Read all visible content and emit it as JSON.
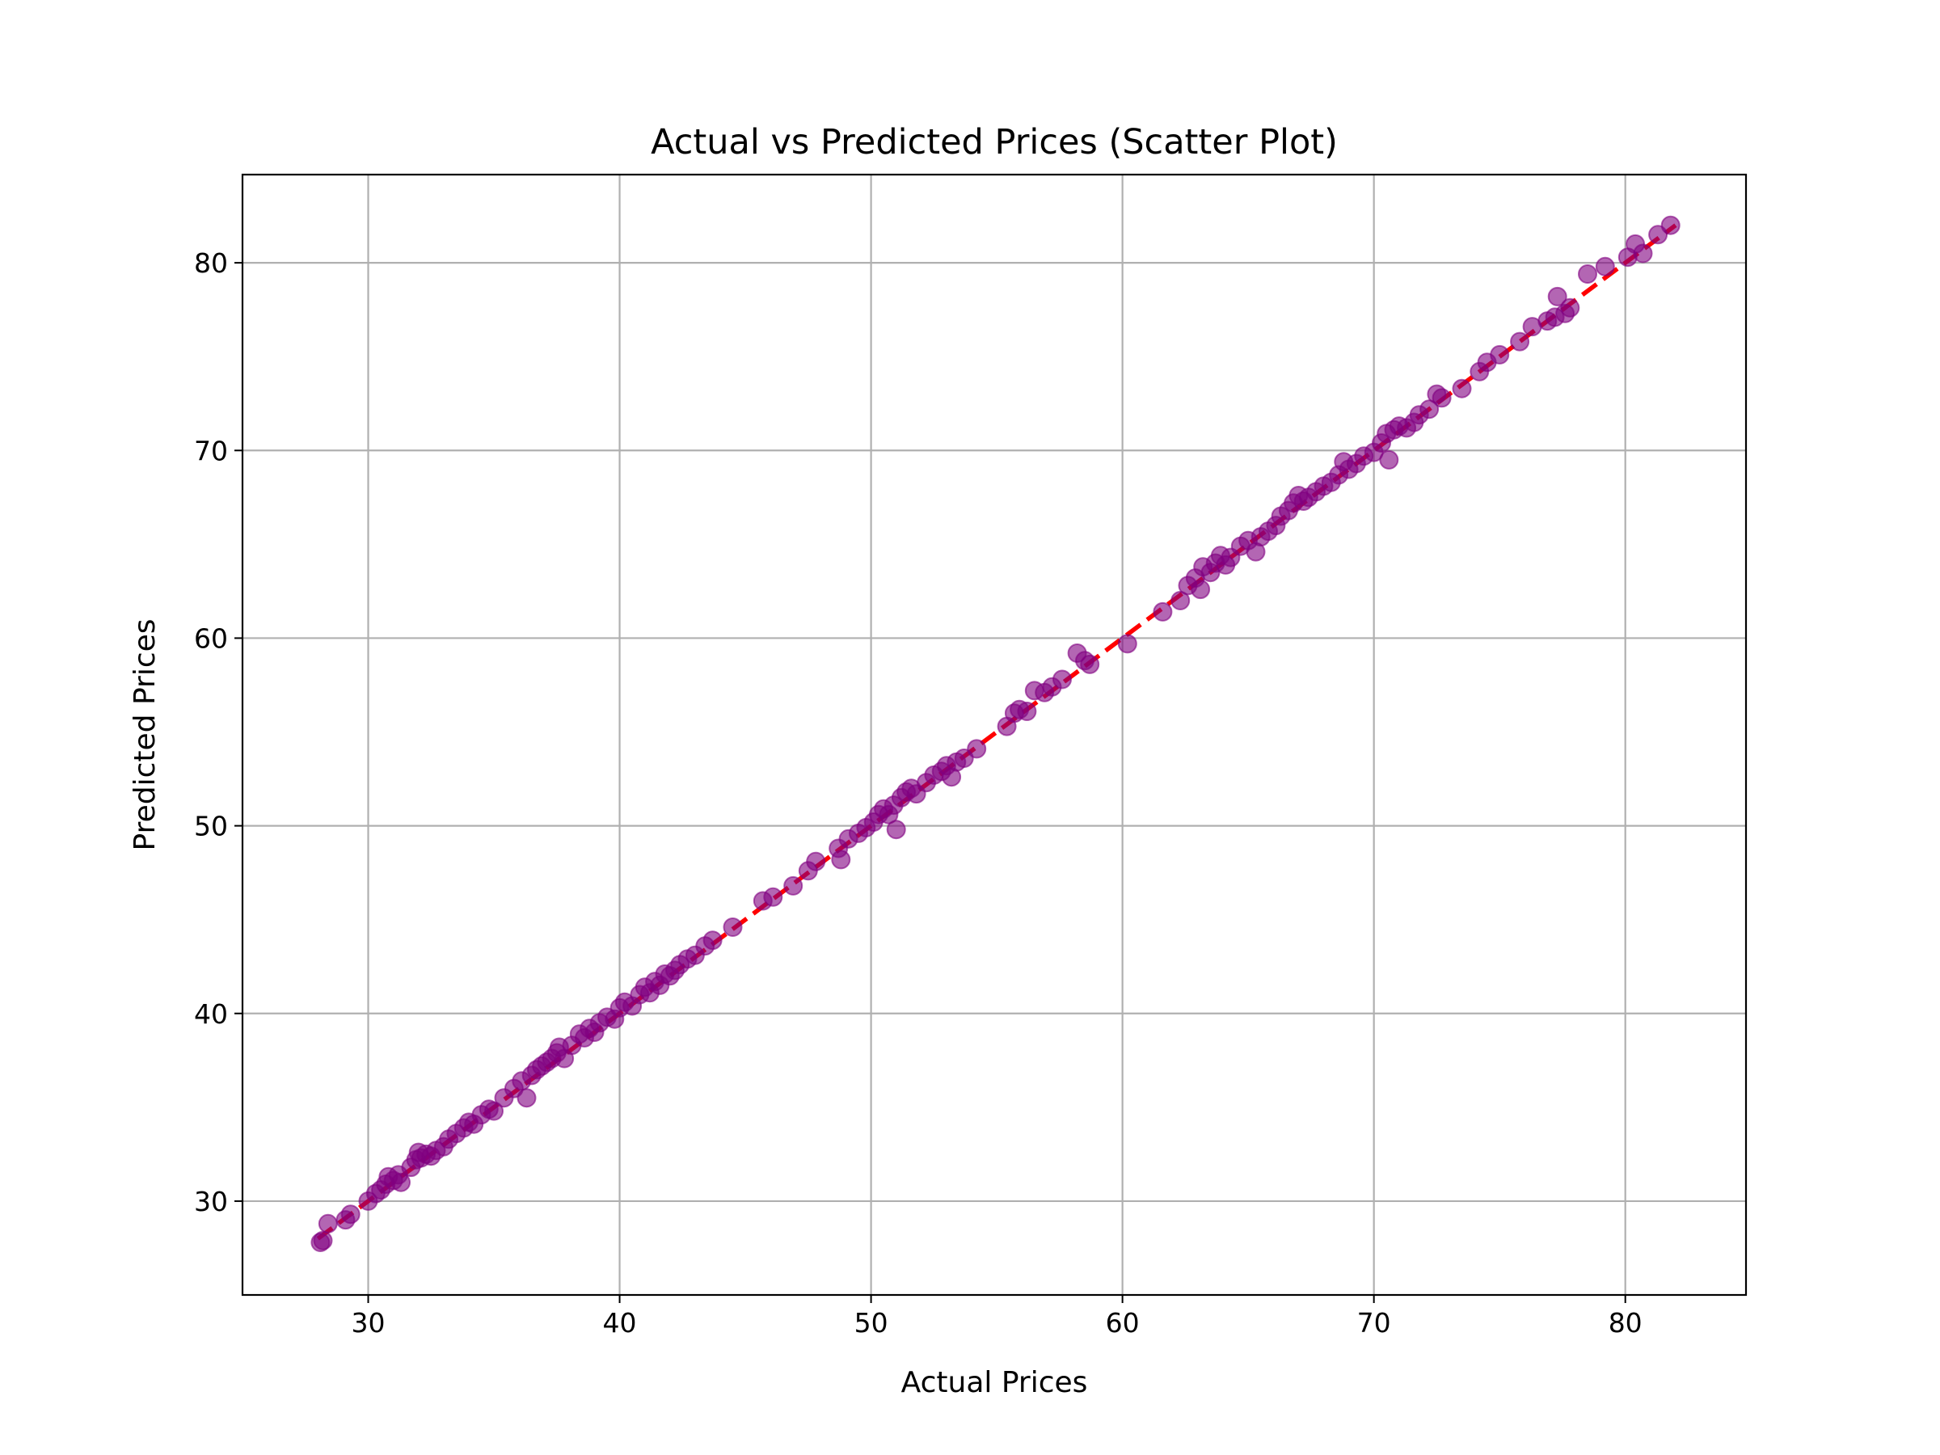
{
  "chart_data": {
    "type": "scatter",
    "title": "Actual vs Predicted Prices (Scatter Plot)",
    "xlabel": "Actual Prices",
    "ylabel": "Predicted Prices",
    "xlim": [
      25,
      84.8
    ],
    "ylim": [
      25,
      84.7
    ],
    "xticks": [
      30,
      40,
      50,
      60,
      70,
      80
    ],
    "yticks": [
      30,
      40,
      50,
      60,
      70,
      80
    ],
    "grid": true,
    "colors": {
      "points": "#800080",
      "reference_line": "#ff0000",
      "grid": "#b0b0b0"
    },
    "reference_line": {
      "style": "dashed",
      "from": [
        28,
        28
      ],
      "to": [
        82,
        82
      ]
    },
    "points": [
      [
        28.1,
        27.8
      ],
      [
        28.2,
        27.9
      ],
      [
        28.4,
        28.8
      ],
      [
        29.1,
        29.0
      ],
      [
        29.3,
        29.3
      ],
      [
        30.0,
        30.0
      ],
      [
        30.3,
        30.4
      ],
      [
        30.5,
        30.6
      ],
      [
        30.7,
        30.9
      ],
      [
        30.8,
        31.3
      ],
      [
        31.0,
        31.1
      ],
      [
        31.2,
        31.4
      ],
      [
        31.3,
        31.0
      ],
      [
        31.7,
        31.8
      ],
      [
        31.9,
        32.2
      ],
      [
        32.0,
        32.6
      ],
      [
        32.1,
        32.3
      ],
      [
        32.3,
        32.5
      ],
      [
        32.5,
        32.4
      ],
      [
        32.7,
        32.7
      ],
      [
        33.0,
        32.9
      ],
      [
        33.2,
        33.3
      ],
      [
        33.5,
        33.6
      ],
      [
        33.8,
        33.9
      ],
      [
        34.0,
        34.2
      ],
      [
        34.2,
        34.1
      ],
      [
        34.5,
        34.6
      ],
      [
        34.8,
        34.9
      ],
      [
        35.0,
        34.8
      ],
      [
        35.4,
        35.5
      ],
      [
        35.8,
        36.0
      ],
      [
        36.1,
        36.4
      ],
      [
        36.3,
        35.5
      ],
      [
        36.5,
        36.7
      ],
      [
        36.7,
        37.0
      ],
      [
        36.9,
        37.2
      ],
      [
        37.1,
        37.4
      ],
      [
        37.3,
        37.6
      ],
      [
        37.5,
        37.9
      ],
      [
        37.6,
        38.2
      ],
      [
        37.8,
        37.6
      ],
      [
        38.1,
        38.3
      ],
      [
        38.4,
        38.9
      ],
      [
        38.6,
        38.7
      ],
      [
        38.8,
        39.2
      ],
      [
        39.0,
        39.0
      ],
      [
        39.2,
        39.5
      ],
      [
        39.5,
        39.8
      ],
      [
        39.8,
        39.7
      ],
      [
        40.0,
        40.3
      ],
      [
        40.2,
        40.6
      ],
      [
        40.5,
        40.4
      ],
      [
        40.8,
        41.0
      ],
      [
        41.0,
        41.4
      ],
      [
        41.2,
        41.1
      ],
      [
        41.4,
        41.7
      ],
      [
        41.6,
        41.5
      ],
      [
        41.8,
        42.1
      ],
      [
        42.0,
        42.0
      ],
      [
        42.2,
        42.3
      ],
      [
        42.4,
        42.6
      ],
      [
        42.7,
        42.9
      ],
      [
        43.0,
        43.1
      ],
      [
        43.4,
        43.6
      ],
      [
        43.7,
        43.9
      ],
      [
        44.5,
        44.6
      ],
      [
        45.7,
        46.0
      ],
      [
        46.1,
        46.2
      ],
      [
        46.9,
        46.8
      ],
      [
        47.5,
        47.6
      ],
      [
        47.8,
        48.1
      ],
      [
        48.7,
        48.8
      ],
      [
        48.8,
        48.2
      ],
      [
        49.1,
        49.3
      ],
      [
        49.5,
        49.6
      ],
      [
        49.8,
        49.9
      ],
      [
        50.1,
        50.2
      ],
      [
        50.3,
        50.6
      ],
      [
        50.5,
        50.9
      ],
      [
        50.7,
        50.6
      ],
      [
        50.9,
        51.1
      ],
      [
        51.0,
        49.8
      ],
      [
        51.2,
        51.5
      ],
      [
        51.4,
        51.8
      ],
      [
        51.6,
        52.0
      ],
      [
        51.8,
        51.7
      ],
      [
        52.2,
        52.3
      ],
      [
        52.5,
        52.7
      ],
      [
        52.8,
        52.9
      ],
      [
        53.0,
        53.2
      ],
      [
        53.2,
        52.6
      ],
      [
        53.4,
        53.4
      ],
      [
        53.7,
        53.6
      ],
      [
        54.2,
        54.1
      ],
      [
        55.4,
        55.3
      ],
      [
        55.7,
        56.0
      ],
      [
        55.9,
        56.2
      ],
      [
        56.2,
        56.1
      ],
      [
        56.5,
        57.2
      ],
      [
        56.9,
        57.1
      ],
      [
        57.2,
        57.4
      ],
      [
        57.6,
        57.8
      ],
      [
        58.2,
        59.2
      ],
      [
        58.5,
        58.8
      ],
      [
        58.7,
        58.6
      ],
      [
        60.2,
        59.7
      ],
      [
        61.6,
        61.4
      ],
      [
        62.3,
        62.0
      ],
      [
        62.6,
        62.8
      ],
      [
        62.9,
        63.2
      ],
      [
        63.1,
        62.6
      ],
      [
        63.2,
        63.8
      ],
      [
        63.5,
        63.5
      ],
      [
        63.7,
        64.0
      ],
      [
        63.9,
        64.4
      ],
      [
        64.1,
        63.9
      ],
      [
        64.3,
        64.3
      ],
      [
        64.7,
        64.9
      ],
      [
        65.0,
        65.2
      ],
      [
        65.3,
        64.6
      ],
      [
        65.5,
        65.4
      ],
      [
        65.8,
        65.7
      ],
      [
        66.1,
        66.0
      ],
      [
        66.3,
        66.5
      ],
      [
        66.6,
        66.8
      ],
      [
        66.8,
        67.2
      ],
      [
        67.0,
        67.6
      ],
      [
        67.2,
        67.3
      ],
      [
        67.4,
        67.5
      ],
      [
        67.7,
        67.8
      ],
      [
        68.0,
        68.1
      ],
      [
        68.3,
        68.3
      ],
      [
        68.6,
        68.7
      ],
      [
        68.8,
        69.4
      ],
      [
        69.0,
        69.0
      ],
      [
        69.3,
        69.3
      ],
      [
        69.6,
        69.7
      ],
      [
        70.0,
        69.9
      ],
      [
        70.3,
        70.4
      ],
      [
        70.5,
        70.9
      ],
      [
        70.6,
        69.5
      ],
      [
        70.8,
        71.1
      ],
      [
        71.0,
        71.3
      ],
      [
        71.3,
        71.2
      ],
      [
        71.6,
        71.5
      ],
      [
        71.8,
        71.9
      ],
      [
        72.2,
        72.2
      ],
      [
        72.5,
        73.0
      ],
      [
        72.7,
        72.8
      ],
      [
        73.5,
        73.3
      ],
      [
        74.2,
        74.2
      ],
      [
        74.5,
        74.7
      ],
      [
        75.0,
        75.1
      ],
      [
        75.8,
        75.8
      ],
      [
        76.3,
        76.6
      ],
      [
        76.9,
        76.9
      ],
      [
        77.2,
        77.1
      ],
      [
        77.3,
        78.2
      ],
      [
        77.6,
        77.3
      ],
      [
        77.8,
        77.6
      ],
      [
        78.5,
        79.4
      ],
      [
        79.2,
        79.8
      ],
      [
        80.1,
        80.3
      ],
      [
        80.4,
        81.0
      ],
      [
        80.7,
        80.5
      ],
      [
        81.3,
        81.5
      ],
      [
        81.8,
        82.0
      ]
    ]
  }
}
